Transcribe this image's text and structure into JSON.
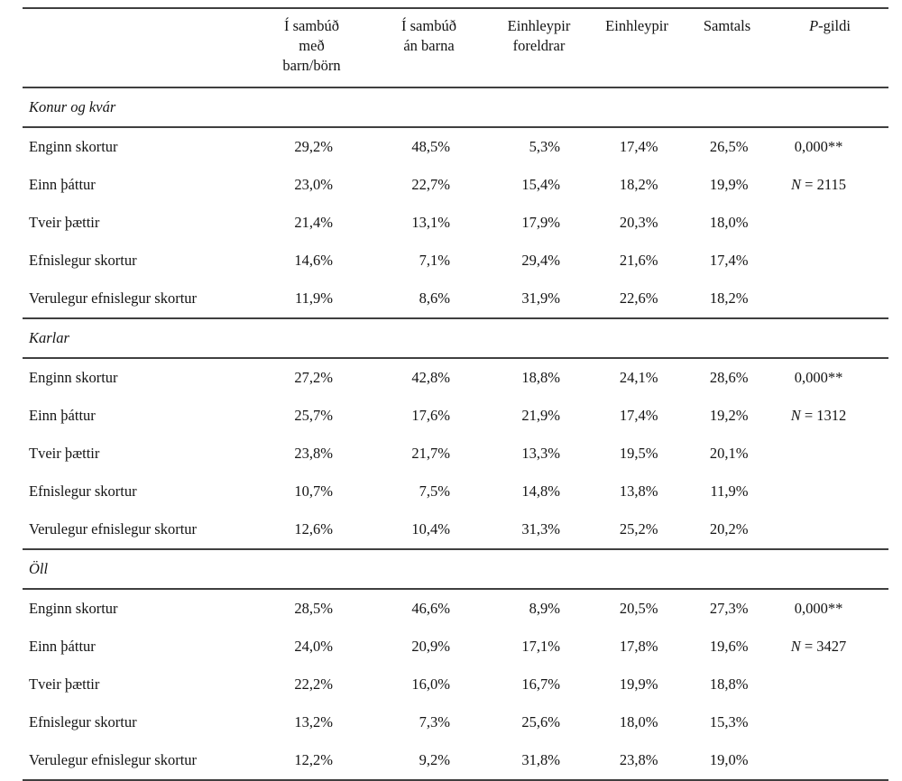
{
  "table": {
    "header": {
      "cols": [
        {
          "line1": "Í sambúð",
          "line2": "með",
          "line3": "barn/börn"
        },
        {
          "line1": "Í sambúð",
          "line2": "án barna"
        },
        {
          "line1": "Einhleypir",
          "line2": "foreldrar"
        },
        {
          "line1": "Einhleypir"
        },
        {
          "line1": "Samtals"
        },
        {
          "italic": "P",
          "rest": "-gildi"
        }
      ]
    },
    "sections": [
      {
        "title": "Konur og kvár",
        "p_value": "0,000**",
        "n_symbol": "N",
        "n_value": "= 2115",
        "rows": [
          {
            "label": "Enginn skortur",
            "values": [
              "29,2%",
              "48,5%",
              "5,3%",
              "17,4%",
              "26,5%"
            ]
          },
          {
            "label": "Einn þáttur",
            "values": [
              "23,0%",
              "22,7%",
              "15,4%",
              "18,2%",
              "19,9%"
            ]
          },
          {
            "label": "Tveir þættir",
            "values": [
              "21,4%",
              "13,1%",
              "17,9%",
              "20,3%",
              "18,0%"
            ]
          },
          {
            "label": "Efnislegur skortur",
            "values": [
              "14,6%",
              "7,1%",
              "29,4%",
              "21,6%",
              "17,4%"
            ]
          },
          {
            "label": "Verulegur efnislegur skortur",
            "values": [
              "11,9%",
              "8,6%",
              "31,9%",
              "22,6%",
              "18,2%"
            ]
          }
        ]
      },
      {
        "title": "Karlar",
        "p_value": "0,000**",
        "n_symbol": "N",
        "n_value": "= 1312",
        "rows": [
          {
            "label": "Enginn skortur",
            "values": [
              "27,2%",
              "42,8%",
              "18,8%",
              "24,1%",
              "28,6%"
            ]
          },
          {
            "label": "Einn þáttur",
            "values": [
              "25,7%",
              "17,6%",
              "21,9%",
              "17,4%",
              "19,2%"
            ]
          },
          {
            "label": "Tveir þættir",
            "values": [
              "23,8%",
              "21,7%",
              "13,3%",
              "19,5%",
              "20,1%"
            ]
          },
          {
            "label": "Efnislegur skortur",
            "values": [
              "10,7%",
              "7,5%",
              "14,8%",
              "13,8%",
              "11,9%"
            ]
          },
          {
            "label": "Verulegur efnislegur skortur",
            "values": [
              "12,6%",
              "10,4%",
              "31,3%",
              "25,2%",
              "20,2%"
            ]
          }
        ]
      },
      {
        "title": "Öll",
        "p_value": "0,000**",
        "n_symbol": "N",
        "n_value": "= 3427",
        "rows": [
          {
            "label": "Enginn skortur",
            "values": [
              "28,5%",
              "46,6%",
              "8,9%",
              "20,5%",
              "27,3%"
            ]
          },
          {
            "label": "Einn þáttur",
            "values": [
              "24,0%",
              "20,9%",
              "17,1%",
              "17,8%",
              "19,6%"
            ]
          },
          {
            "label": "Tveir þættir",
            "values": [
              "22,2%",
              "16,0%",
              "16,7%",
              "19,9%",
              "18,8%"
            ]
          },
          {
            "label": "Efnislegur skortur",
            "values": [
              "13,2%",
              "7,3%",
              "25,6%",
              "18,0%",
              "15,3%"
            ]
          },
          {
            "label": "Verulegur efnislegur skortur",
            "values": [
              "12,2%",
              "9,2%",
              "31,8%",
              "23,8%",
              "19,0%"
            ]
          }
        ]
      }
    ],
    "colors": {
      "rule": "#3f3f3f",
      "text": "#141414",
      "background": "#ffffff"
    }
  }
}
